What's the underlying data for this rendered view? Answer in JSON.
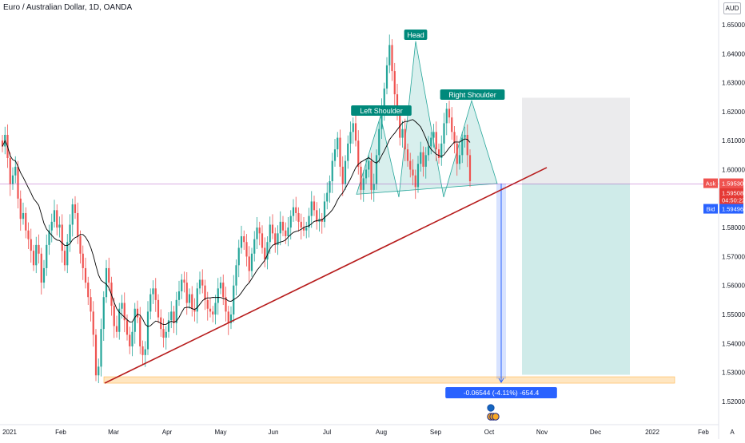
{
  "header": {
    "symbol_title": "Euro / Australian Dollar, 1D, OANDA",
    "currency": "AUD",
    "log_button": "A"
  },
  "colors": {
    "up": "#26a69a",
    "down": "#ef5350",
    "ma_line": "#000000",
    "trendline": "#b71c1c",
    "pattern_fill": "#26a69a",
    "ask": "#ef5350",
    "bid": "#2962ff",
    "stop_zone": "#787b86",
    "target_zone": "#26a69a",
    "support_zone": "#ffe0b2",
    "measure": "#2962ff"
  },
  "price_axis": {
    "labels": [
      "1.65000",
      "1.64000",
      "1.63000",
      "1.62000",
      "1.61000",
      "1.60000",
      "1.58000",
      "1.57000",
      "1.56000",
      "1.55000",
      "1.54000",
      "1.53000",
      "1.52000"
    ],
    "ask_label": "Ask",
    "ask_price": "1.59530",
    "last_price": "1.59508",
    "countdown": "04:50:22",
    "bid_label": "Bid",
    "bid_price": "1.59496"
  },
  "time_axis": {
    "labels": [
      "2021",
      "Feb",
      "Mar",
      "Apr",
      "May",
      "Jun",
      "Jul",
      "Aug",
      "Sep",
      "Oct",
      "Nov",
      "Dec",
      "2022",
      "Feb"
    ]
  },
  "annotations": {
    "left_shoulder": "Left Shoulder",
    "head": "Head",
    "right_shoulder": "Right Shoulder",
    "measure_label": "-0.06544 (-4.11%) -654.4"
  },
  "chart_data": {
    "type": "candlestick",
    "title": "Euro / Australian Dollar, 1D, OANDA",
    "ylim": [
      1.5172,
      1.6563
    ],
    "x_range": [
      "2021-01",
      "2022-02"
    ],
    "pattern": "head and shoulders",
    "key_levels": {
      "head_high": 1.6443,
      "left_shoulder_high": 1.6185,
      "right_shoulder_high": 1.6238,
      "neckline_start": 1.5915,
      "neckline_end": 1.5952,
      "current_price": 1.59508,
      "stop_zone": [
        1.5952,
        1.6248
      ],
      "target_zone": [
        1.5292,
        1.5952
      ],
      "support_zone": [
        1.5263,
        1.5285
      ],
      "measured_move": -0.06544,
      "measured_move_pct": -4.11,
      "measured_move_pips": -654.4
    },
    "series": [
      {
        "name": "",
        "values": [
          1.608,
          1.612,
          1.604,
          1.595,
          1.598,
          1.601,
          1.59,
          1.583,
          1.585,
          1.579,
          1.576,
          1.572,
          1.567,
          1.574,
          1.571,
          1.561,
          1.566,
          1.574,
          1.579,
          1.582,
          1.586,
          1.58,
          1.581,
          1.572,
          1.567,
          1.575,
          1.581,
          1.588,
          1.585,
          1.577,
          1.571,
          1.566,
          1.561,
          1.556,
          1.551,
          1.543,
          1.529,
          1.532,
          1.545,
          1.556,
          1.566,
          1.561,
          1.553,
          1.546,
          1.544,
          1.552,
          1.554,
          1.548,
          1.543,
          1.539,
          1.544,
          1.552,
          1.549,
          1.539,
          1.536,
          1.538,
          1.551,
          1.557,
          1.559,
          1.555,
          1.549,
          1.545,
          1.542,
          1.544,
          1.548,
          1.551,
          1.547,
          1.555,
          1.558,
          1.562,
          1.561,
          1.554,
          1.557,
          1.552,
          1.551,
          1.559,
          1.562,
          1.56,
          1.555,
          1.552,
          1.551,
          1.55,
          1.554,
          1.559,
          1.561,
          1.556,
          1.551,
          1.547,
          1.55,
          1.56,
          1.567,
          1.573,
          1.577,
          1.575,
          1.57,
          1.565,
          1.571,
          1.576,
          1.58,
          1.578,
          1.573,
          1.569,
          1.575,
          1.581,
          1.578,
          1.574,
          1.578,
          1.582,
          1.579,
          1.577,
          1.58,
          1.584,
          1.587,
          1.585,
          1.582,
          1.58,
          1.579,
          1.58,
          1.584,
          1.589,
          1.586,
          1.582,
          1.583,
          1.582,
          1.589,
          1.592,
          1.596,
          1.603,
          1.607,
          1.611,
          1.601,
          1.595,
          1.603,
          1.609,
          1.613,
          1.616,
          1.61,
          1.601,
          1.593,
          1.597,
          1.6,
          1.603,
          1.593,
          1.595,
          1.605,
          1.614,
          1.621,
          1.628,
          1.636,
          1.643,
          1.634,
          1.626,
          1.619,
          1.611,
          1.614,
          1.607,
          1.603,
          1.6,
          1.598,
          1.594,
          1.602,
          1.606,
          1.601,
          1.605,
          1.608,
          1.611,
          1.613,
          1.607,
          1.604,
          1.609,
          1.616,
          1.621,
          1.618,
          1.613,
          1.609,
          1.602,
          1.605,
          1.611,
          1.612,
          1.605,
          1.596
        ]
      }
    ]
  }
}
